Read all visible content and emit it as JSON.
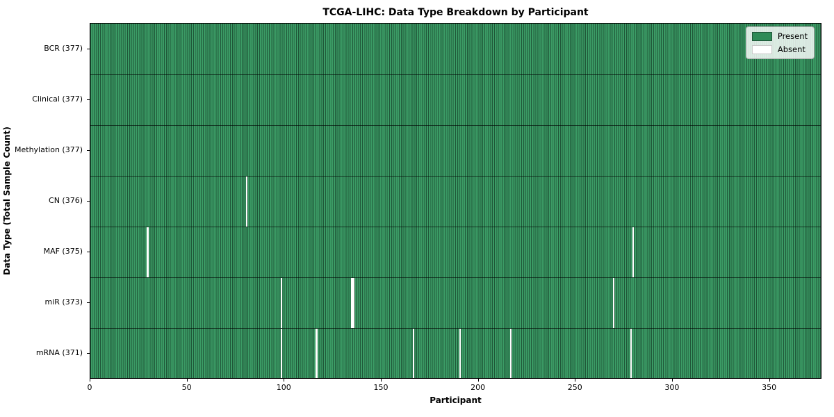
{
  "title": "TCGA-LIHC: Data Type Breakdown by Participant",
  "colors": {
    "present_fill": "#3b9b65",
    "cell_edge": "#1f5638",
    "legend_present": "#2e8b57",
    "absent": "#ffffff",
    "axis": "#000000"
  },
  "chart_data": {
    "type": "heatmap",
    "title": "TCGA-LIHC: Data Type Breakdown by Participant",
    "xlabel": "Participant",
    "ylabel": "Data Type (Total Sample Count)",
    "x_ticks": [
      0,
      50,
      100,
      150,
      200,
      250,
      300,
      350
    ],
    "x_range": [
      0,
      377
    ],
    "n_participants": 377,
    "grid": "cell-borders",
    "legend_position": "upper right",
    "legend": [
      {
        "label": "Present",
        "color": "#2e8b57"
      },
      {
        "label": "Absent",
        "color": "#ffffff"
      }
    ],
    "rows": [
      {
        "label": "BCR (377)",
        "data_type": "BCR",
        "present_count": 377,
        "absent_participants": []
      },
      {
        "label": "Clinical (377)",
        "data_type": "Clinical",
        "present_count": 377,
        "absent_participants": []
      },
      {
        "label": "Methylation (377)",
        "data_type": "Methylation",
        "present_count": 377,
        "absent_participants": []
      },
      {
        "label": "CN (376)",
        "data_type": "CN",
        "present_count": 376,
        "absent_participants": [
          80
        ]
      },
      {
        "label": "MAF (375)",
        "data_type": "MAF",
        "present_count": 375,
        "absent_participants": [
          29,
          279
        ]
      },
      {
        "label": "miR (373)",
        "data_type": "miR",
        "present_count": 373,
        "absent_participants": [
          98,
          134,
          135,
          269
        ]
      },
      {
        "label": "mRNA (371)",
        "data_type": "mRNA",
        "present_count": 371,
        "absent_participants": [
          98,
          116,
          166,
          190,
          216,
          278
        ]
      }
    ]
  }
}
